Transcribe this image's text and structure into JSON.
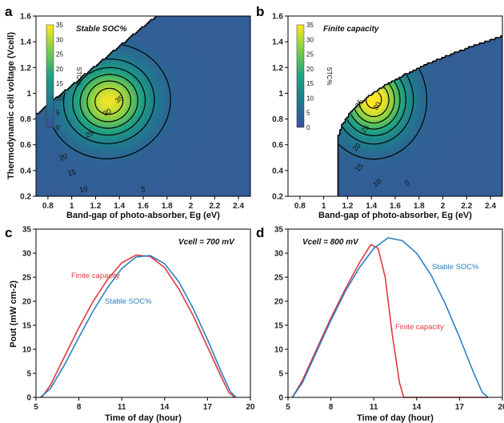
{
  "figure": {
    "panels": [
      {
        "id": "a",
        "label": "a",
        "title": "Stable SOC%",
        "xlabel": "Band-gap of photo-absorber, Eg (eV)",
        "ylabel": "Thermodynamic cell voltage (Vcell)"
      },
      {
        "id": "b",
        "label": "b",
        "title": "Finite capacity",
        "xlabel": "Band-gap of photo-absorber, Eg (eV)",
        "ylabel": ""
      },
      {
        "id": "c",
        "label": "c",
        "annotation": "Vcell = 700 mV",
        "xlabel": "Time of day (hour)",
        "ylabel": "Pout (mW cm-2)"
      },
      {
        "id": "d",
        "label": "d",
        "annotation": "Vcell = 800 mV",
        "xlabel": "Time of day (hour)",
        "ylabel": ""
      }
    ],
    "colorbar": {
      "label": "STC%",
      "ticks": [
        "35",
        "30",
        "25",
        "20",
        "15",
        "10",
        "5",
        "0"
      ]
    },
    "colors": {
      "finite": "#e03a3e",
      "stable": "#2f7fc1"
    }
  },
  "chart_data": [
    {
      "type": "heatmap",
      "panel": "a",
      "title": "Stable SOC%",
      "xlabel": "Band-gap of photo-absorber, Eg (eV)",
      "ylabel": "Thermodynamic cell voltage (Vcell)",
      "xlim": [
        0.7,
        2.5
      ],
      "ylim": [
        0.2,
        1.6
      ],
      "xticks": [
        "0.8",
        "1",
        "1.2",
        "1.4",
        "1.6",
        "1.8",
        "2",
        "2.2",
        "2.4"
      ],
      "yticks": [
        "0.2",
        "0.4",
        "0.6",
        "0.8",
        "1",
        "1.2",
        "1.4",
        "1.6"
      ],
      "zlim": [
        0,
        35
      ],
      "colorbar_label": "STC%",
      "colorbar_ticks": [
        "0",
        "5",
        "10",
        "15",
        "20",
        "25",
        "30",
        "35"
      ],
      "contour_levels": [
        5,
        10,
        15,
        20,
        25,
        30,
        35
      ],
      "contour_labels": [
        "5",
        "10",
        "15",
        "20",
        "25",
        "30",
        "35"
      ],
      "peak": {
        "x": 1.3,
        "y": 0.95,
        "value": 36
      }
    },
    {
      "type": "heatmap",
      "panel": "b",
      "title": "Finite capacity",
      "xlabel": "Band-gap of photo-absorber, Eg (eV)",
      "xlim": [
        0.7,
        2.5
      ],
      "ylim": [
        0.2,
        1.6
      ],
      "xticks": [
        "0.8",
        "1",
        "1.2",
        "1.4",
        "1.6",
        "1.8",
        "2",
        "2.2",
        "2.4"
      ],
      "yticks": [
        "0.2",
        "0.4",
        "0.6",
        "0.8",
        "1",
        "1.2",
        "1.4",
        "1.6"
      ],
      "zlim": [
        0,
        35
      ],
      "colorbar_label": "STC%",
      "colorbar_ticks": [
        "0",
        "5",
        "10",
        "15",
        "20",
        "25",
        "30",
        "35"
      ],
      "contour_levels": [
        5,
        10,
        15,
        20,
        25,
        30,
        35
      ],
      "contour_labels": [
        "5",
        "10",
        "15",
        "20",
        "25",
        "30",
        "35"
      ],
      "onset_eg": 1.12,
      "peak": {
        "x": 1.4,
        "y": 0.95,
        "value": 37
      }
    },
    {
      "type": "line",
      "panel": "c",
      "annotation": "Vcell = 700 mV",
      "xlabel": "Time of day (hour)",
      "ylabel": "Pout (mW cm-2)",
      "xlim": [
        5,
        20
      ],
      "ylim": [
        0,
        35
      ],
      "xticks": [
        "5",
        "8",
        "11",
        "14",
        "17",
        "20"
      ],
      "yticks": [
        "0",
        "5",
        "10",
        "15",
        "20",
        "25",
        "30",
        "35"
      ],
      "series": [
        {
          "name": "Finite capacity",
          "color": "#e03a3e",
          "x": [
            5.4,
            6,
            7,
            8,
            9,
            10,
            11,
            12,
            13,
            14,
            15,
            16,
            17,
            18,
            18.5,
            18.9
          ],
          "y": [
            0,
            2.5,
            8.5,
            14.5,
            20,
            24.5,
            28,
            29.6,
            29.3,
            27,
            22.5,
            17,
            10.5,
            4,
            1,
            0
          ]
        },
        {
          "name": "Stable SOC%",
          "color": "#2f7fc1",
          "x": [
            5.3,
            6,
            7,
            8,
            9,
            10,
            11,
            12,
            13,
            14,
            15,
            16,
            17,
            18,
            18.6,
            19.0
          ],
          "y": [
            0,
            1.8,
            6.8,
            12.5,
            18,
            22.8,
            26.8,
            29.2,
            29.5,
            27.8,
            24,
            18.5,
            12,
            5,
            1.2,
            0
          ]
        }
      ]
    },
    {
      "type": "line",
      "panel": "d",
      "annotation": "Vcell = 800 mV",
      "xlabel": "Time of day (hour)",
      "xlim": [
        5,
        20
      ],
      "ylim": [
        0,
        35
      ],
      "xticks": [
        "5",
        "8",
        "11",
        "14",
        "17",
        "20"
      ],
      "yticks": [
        "0",
        "5",
        "10",
        "15",
        "20",
        "25",
        "30",
        "35"
      ],
      "series": [
        {
          "name": "Finite capacity",
          "color": "#e03a3e",
          "x": [
            5.3,
            6,
            7,
            8,
            9,
            10,
            10.8,
            11.3,
            11.8,
            12.3,
            12.8,
            13.1,
            19
          ],
          "y": [
            0,
            3.5,
            10,
            16.5,
            22.5,
            28,
            31.8,
            31,
            25,
            13,
            3,
            0,
            0
          ]
        },
        {
          "name": "Stable SOC%",
          "color": "#2f7fc1",
          "x": [
            5.3,
            6,
            7,
            8,
            9,
            10,
            11,
            12,
            13,
            14,
            15,
            16,
            17,
            18,
            18.6,
            19.0
          ],
          "y": [
            0,
            3,
            9.5,
            16,
            22,
            27,
            31,
            33.2,
            32.6,
            30,
            25.5,
            19.5,
            12.5,
            5,
            1,
            0
          ]
        }
      ]
    }
  ]
}
